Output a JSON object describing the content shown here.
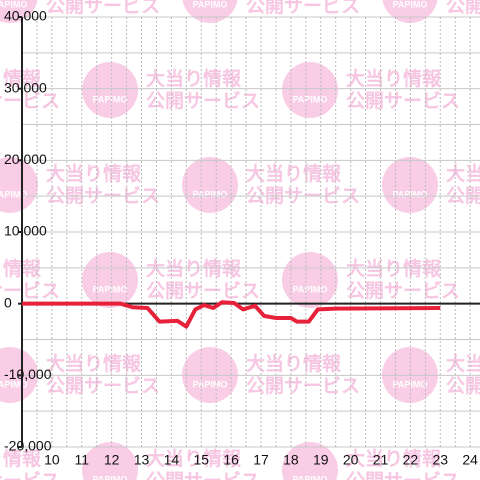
{
  "chart_data": {
    "type": "line",
    "watermark": {
      "line1": "大当り情報",
      "line2": "公開サービス",
      "logo": "PAPIMO"
    },
    "x": [
      9,
      12.3,
      12.7,
      13.2,
      13.6,
      14.2,
      14.5,
      14.8,
      15.1,
      15.4,
      15.7,
      16.1,
      16.4,
      16.8,
      17.1,
      17.5,
      18,
      18.2,
      18.6,
      18.9,
      19.5,
      23
    ],
    "series": [
      {
        "color": "#e8213a",
        "values": [
          0,
          0,
          -500,
          -600,
          -2500,
          -2400,
          -3200,
          -800,
          -200,
          -600,
          200,
          100,
          -800,
          -300,
          -1700,
          -2000,
          -2000,
          -2500,
          -2500,
          -800,
          -700,
          -600
        ]
      }
    ],
    "xlim": [
      9,
      24.33
    ],
    "ylim": [
      -20000,
      40000
    ],
    "xticks": [
      10,
      11,
      12,
      13,
      14,
      15,
      16,
      17,
      18,
      19,
      20,
      21,
      22,
      23,
      24
    ],
    "xgrid": [
      9.5,
      10,
      10.5,
      11,
      11.5,
      12,
      12.5,
      13,
      13.5,
      14,
      14.5,
      15,
      15.5,
      16,
      16.5,
      17,
      17.5,
      18,
      18.5,
      19,
      19.5,
      20,
      20.5,
      21,
      21.5,
      22,
      22.5,
      23,
      23.5,
      24
    ],
    "yticks": [
      {
        "value": 40000,
        "label": "40,000"
      },
      {
        "value": 30000,
        "label": "30,000"
      },
      {
        "value": 20000,
        "label": "20,000"
      },
      {
        "value": 10000,
        "label": "10,000"
      },
      0,
      {
        "value": -10000,
        "label": "-10,000"
      },
      {
        "value": -20000,
        "label": "-20,000"
      }
    ],
    "ygrid": [
      40000,
      35000,
      30000,
      25000,
      20000,
      15000,
      10000,
      5000,
      0,
      -5000,
      -10000,
      -15000,
      -20000
    ]
  }
}
